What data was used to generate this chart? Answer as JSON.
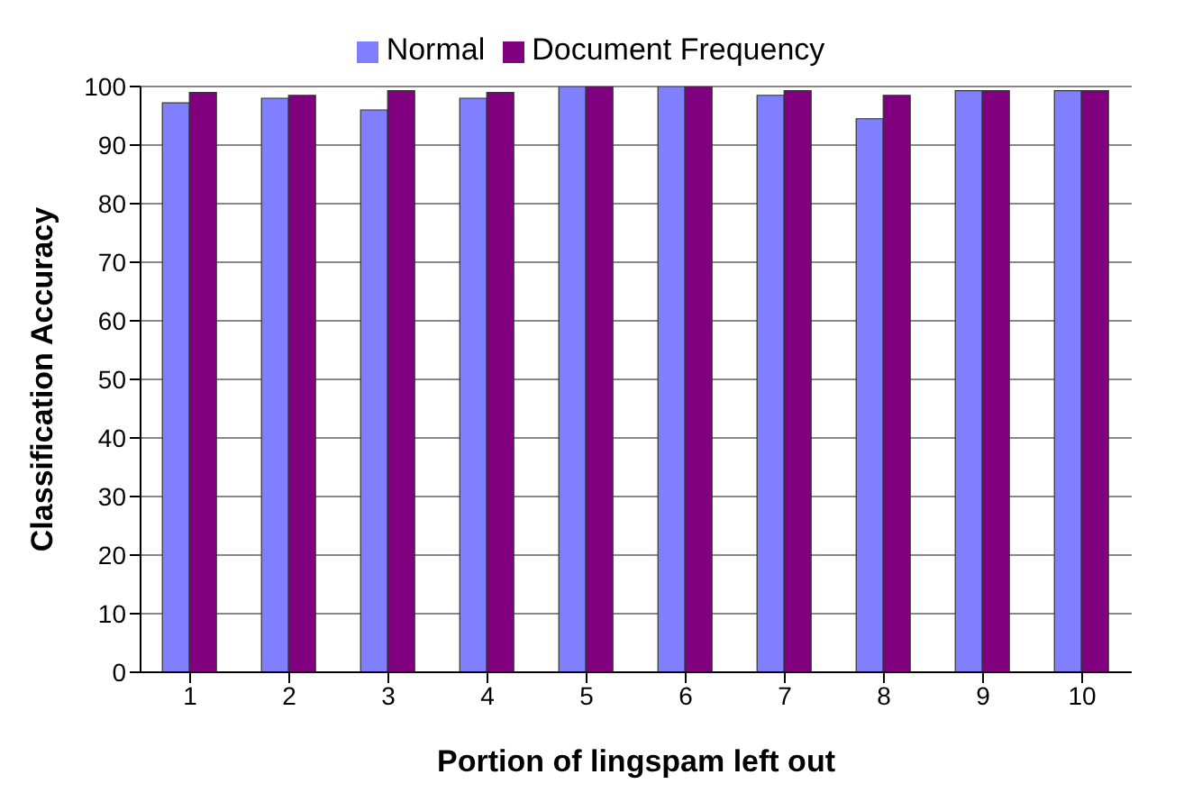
{
  "chart_data": {
    "type": "bar",
    "xlabel": "Portion of lingspam left out",
    "ylabel": "Classification Accuracy",
    "categories": [
      "1",
      "2",
      "3",
      "4",
      "5",
      "6",
      "7",
      "8",
      "9",
      "10"
    ],
    "series": [
      {
        "name": "Normal",
        "color": "#8080ff",
        "values": [
          97.2,
          98,
          96,
          98,
          100,
          100,
          98.5,
          94.5,
          99.3,
          99.3
        ]
      },
      {
        "name": "Document Frequency",
        "color": "#800080",
        "values": [
          99,
          98.5,
          99.3,
          99,
          100,
          100,
          99.3,
          98.5,
          99.3,
          99.3
        ]
      }
    ],
    "ylim": [
      0,
      100
    ],
    "yticks": [
      0,
      10,
      20,
      30,
      40,
      50,
      60,
      70,
      80,
      90,
      100
    ],
    "grid": "y",
    "legend": "top"
  }
}
